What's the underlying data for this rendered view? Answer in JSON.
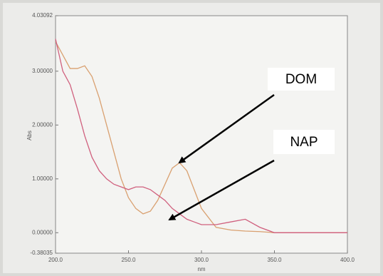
{
  "chart_data": {
    "type": "line",
    "x_label": "nm",
    "y_label": "Abs",
    "x": [
      200,
      205,
      210,
      215,
      220,
      225,
      230,
      235,
      240,
      245,
      250,
      255,
      260,
      265,
      270,
      275,
      280,
      285,
      290,
      295,
      300,
      310,
      320,
      330,
      340,
      350,
      360,
      370,
      380,
      390,
      400
    ],
    "series": [
      {
        "color": "#d9a070",
        "values": [
          3.55,
          3.3,
          3.05,
          3.05,
          3.1,
          2.9,
          2.5,
          2.0,
          1.5,
          1.0,
          0.65,
          0.45,
          0.35,
          0.4,
          0.6,
          0.9,
          1.2,
          1.3,
          1.15,
          0.8,
          0.45,
          0.1,
          0.05,
          0.03,
          0.02,
          0,
          0,
          0,
          0,
          0,
          0
        ]
      },
      {
        "color": "#d0607e",
        "values": [
          3.6,
          3.0,
          2.75,
          2.3,
          1.8,
          1.4,
          1.15,
          1.0,
          0.9,
          0.85,
          0.8,
          0.85,
          0.85,
          0.8,
          0.7,
          0.6,
          0.45,
          0.35,
          0.25,
          0.2,
          0.15,
          0.15,
          0.2,
          0.25,
          0.1,
          0,
          0,
          0,
          0,
          0,
          0
        ]
      }
    ],
    "xlim": [
      200,
      400
    ],
    "xticks": [
      {
        "value": 200,
        "label": "200.0"
      },
      {
        "value": 250,
        "label": "250.0"
      },
      {
        "value": 300,
        "label": "300.0"
      },
      {
        "value": 350,
        "label": "350.0"
      },
      {
        "value": 400,
        "label": "400.0"
      }
    ],
    "ylim": [
      -0.38035,
      4.03092
    ],
    "yticks": [
      {
        "value": -0.38035,
        "label": "-0.38035"
      },
      {
        "value": 0,
        "label": "0.00000"
      },
      {
        "value": 1,
        "label": "1.00000"
      },
      {
        "value": 2,
        "label": "2.00000"
      },
      {
        "value": 3,
        "label": "3.00000"
      },
      {
        "value": 4.03092,
        "label": "4.03092"
      }
    ],
    "annotations": [
      "DOM",
      "NAP"
    ]
  }
}
